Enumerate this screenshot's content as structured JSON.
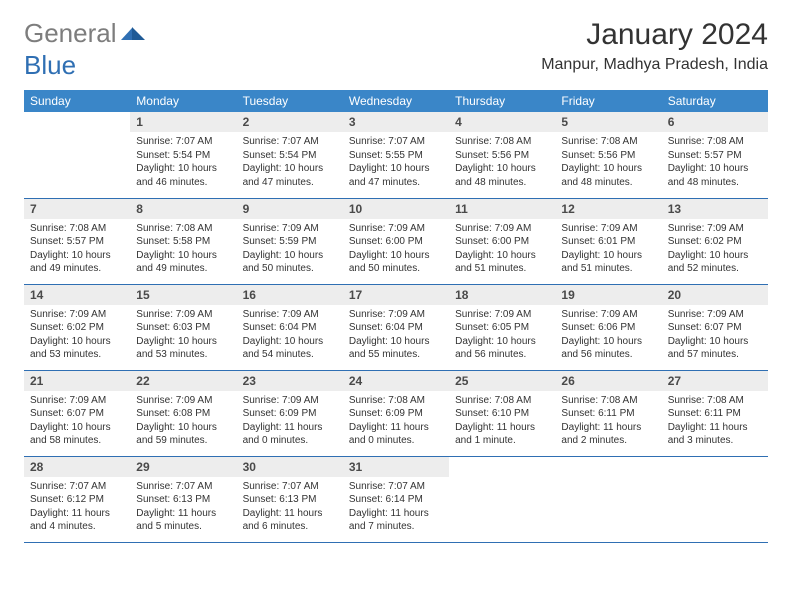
{
  "brand": {
    "part1": "General",
    "part2": "Blue"
  },
  "title": "January 2024",
  "location": "Manpur, Madhya Pradesh, India",
  "colors": {
    "header_bg": "#3a86c8",
    "header_text": "#ffffff",
    "daynum_bg": "#ededed",
    "row_border": "#2f6fb3",
    "brand_gray": "#7d7d7d",
    "brand_blue": "#2f6fb3"
  },
  "daynames": [
    "Sunday",
    "Monday",
    "Tuesday",
    "Wednesday",
    "Thursday",
    "Friday",
    "Saturday"
  ],
  "weeks": [
    [
      {
        "n": "",
        "sr": "",
        "ss": "",
        "dl": ""
      },
      {
        "n": "1",
        "sr": "7:07 AM",
        "ss": "5:54 PM",
        "dl": "10 hours and 46 minutes."
      },
      {
        "n": "2",
        "sr": "7:07 AM",
        "ss": "5:54 PM",
        "dl": "10 hours and 47 minutes."
      },
      {
        "n": "3",
        "sr": "7:07 AM",
        "ss": "5:55 PM",
        "dl": "10 hours and 47 minutes."
      },
      {
        "n": "4",
        "sr": "7:08 AM",
        "ss": "5:56 PM",
        "dl": "10 hours and 48 minutes."
      },
      {
        "n": "5",
        "sr": "7:08 AM",
        "ss": "5:56 PM",
        "dl": "10 hours and 48 minutes."
      },
      {
        "n": "6",
        "sr": "7:08 AM",
        "ss": "5:57 PM",
        "dl": "10 hours and 48 minutes."
      }
    ],
    [
      {
        "n": "7",
        "sr": "7:08 AM",
        "ss": "5:57 PM",
        "dl": "10 hours and 49 minutes."
      },
      {
        "n": "8",
        "sr": "7:08 AM",
        "ss": "5:58 PM",
        "dl": "10 hours and 49 minutes."
      },
      {
        "n": "9",
        "sr": "7:09 AM",
        "ss": "5:59 PM",
        "dl": "10 hours and 50 minutes."
      },
      {
        "n": "10",
        "sr": "7:09 AM",
        "ss": "6:00 PM",
        "dl": "10 hours and 50 minutes."
      },
      {
        "n": "11",
        "sr": "7:09 AM",
        "ss": "6:00 PM",
        "dl": "10 hours and 51 minutes."
      },
      {
        "n": "12",
        "sr": "7:09 AM",
        "ss": "6:01 PM",
        "dl": "10 hours and 51 minutes."
      },
      {
        "n": "13",
        "sr": "7:09 AM",
        "ss": "6:02 PM",
        "dl": "10 hours and 52 minutes."
      }
    ],
    [
      {
        "n": "14",
        "sr": "7:09 AM",
        "ss": "6:02 PM",
        "dl": "10 hours and 53 minutes."
      },
      {
        "n": "15",
        "sr": "7:09 AM",
        "ss": "6:03 PM",
        "dl": "10 hours and 53 minutes."
      },
      {
        "n": "16",
        "sr": "7:09 AM",
        "ss": "6:04 PM",
        "dl": "10 hours and 54 minutes."
      },
      {
        "n": "17",
        "sr": "7:09 AM",
        "ss": "6:04 PM",
        "dl": "10 hours and 55 minutes."
      },
      {
        "n": "18",
        "sr": "7:09 AM",
        "ss": "6:05 PM",
        "dl": "10 hours and 56 minutes."
      },
      {
        "n": "19",
        "sr": "7:09 AM",
        "ss": "6:06 PM",
        "dl": "10 hours and 56 minutes."
      },
      {
        "n": "20",
        "sr": "7:09 AM",
        "ss": "6:07 PM",
        "dl": "10 hours and 57 minutes."
      }
    ],
    [
      {
        "n": "21",
        "sr": "7:09 AM",
        "ss": "6:07 PM",
        "dl": "10 hours and 58 minutes."
      },
      {
        "n": "22",
        "sr": "7:09 AM",
        "ss": "6:08 PM",
        "dl": "10 hours and 59 minutes."
      },
      {
        "n": "23",
        "sr": "7:09 AM",
        "ss": "6:09 PM",
        "dl": "11 hours and 0 minutes."
      },
      {
        "n": "24",
        "sr": "7:08 AM",
        "ss": "6:09 PM",
        "dl": "11 hours and 0 minutes."
      },
      {
        "n": "25",
        "sr": "7:08 AM",
        "ss": "6:10 PM",
        "dl": "11 hours and 1 minute."
      },
      {
        "n": "26",
        "sr": "7:08 AM",
        "ss": "6:11 PM",
        "dl": "11 hours and 2 minutes."
      },
      {
        "n": "27",
        "sr": "7:08 AM",
        "ss": "6:11 PM",
        "dl": "11 hours and 3 minutes."
      }
    ],
    [
      {
        "n": "28",
        "sr": "7:07 AM",
        "ss": "6:12 PM",
        "dl": "11 hours and 4 minutes."
      },
      {
        "n": "29",
        "sr": "7:07 AM",
        "ss": "6:13 PM",
        "dl": "11 hours and 5 minutes."
      },
      {
        "n": "30",
        "sr": "7:07 AM",
        "ss": "6:13 PM",
        "dl": "11 hours and 6 minutes."
      },
      {
        "n": "31",
        "sr": "7:07 AM",
        "ss": "6:14 PM",
        "dl": "11 hours and 7 minutes."
      },
      {
        "n": "",
        "sr": "",
        "ss": "",
        "dl": ""
      },
      {
        "n": "",
        "sr": "",
        "ss": "",
        "dl": ""
      },
      {
        "n": "",
        "sr": "",
        "ss": "",
        "dl": ""
      }
    ]
  ]
}
